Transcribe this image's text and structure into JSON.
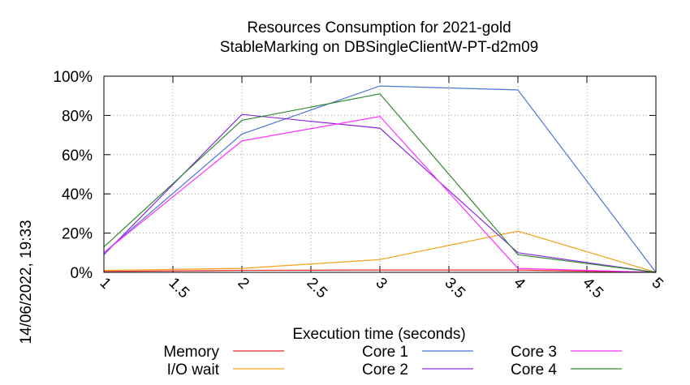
{
  "side_label": "14/06/2022, 19:33",
  "chart_data": {
    "type": "line",
    "title": "Resources Consumption for 2021-gold",
    "subtitle": "StableMarking on DBSingleClientW-PT-d2m09",
    "xlabel": "Execution time (seconds)",
    "ylabel": "",
    "xlim": [
      1,
      5
    ],
    "ylim": [
      0,
      100
    ],
    "x_ticks": [
      "1",
      "1.5",
      "2",
      "2.5",
      "3",
      "3.5",
      "4",
      "4.5",
      "5"
    ],
    "y_ticks": [
      "0%",
      "20%",
      "40%",
      "60%",
      "80%",
      "100%"
    ],
    "grid": true,
    "legend_position": "bottom",
    "series": [
      {
        "name": "Memory",
        "color": "#e8262a",
        "x": [
          1,
          2,
          3,
          4,
          5
        ],
        "values": [
          0.5,
          1,
          1.2,
          1.2,
          0
        ]
      },
      {
        "name": "I/O wait",
        "color": "#f3a21a",
        "x": [
          1,
          2,
          3,
          4,
          5
        ],
        "values": [
          1,
          2,
          6.5,
          21,
          0
        ]
      },
      {
        "name": "Core 1",
        "color": "#4f75d6",
        "x": [
          1,
          2,
          3,
          4,
          5
        ],
        "values": [
          10,
          70.5,
          95,
          93,
          0
        ]
      },
      {
        "name": "Core 2",
        "color": "#8a2be2",
        "x": [
          1,
          2,
          3,
          4,
          5
        ],
        "values": [
          9,
          80.5,
          73.5,
          10,
          0
        ]
      },
      {
        "name": "Core 3",
        "color": "#ff33ff",
        "x": [
          1,
          2,
          3,
          4,
          5
        ],
        "values": [
          10,
          67,
          79.5,
          2,
          0
        ]
      },
      {
        "name": "Core 4",
        "color": "#2e8b2e",
        "x": [
          1,
          2,
          3,
          4,
          5
        ],
        "values": [
          13,
          77.5,
          91,
          9,
          0
        ]
      }
    ]
  }
}
